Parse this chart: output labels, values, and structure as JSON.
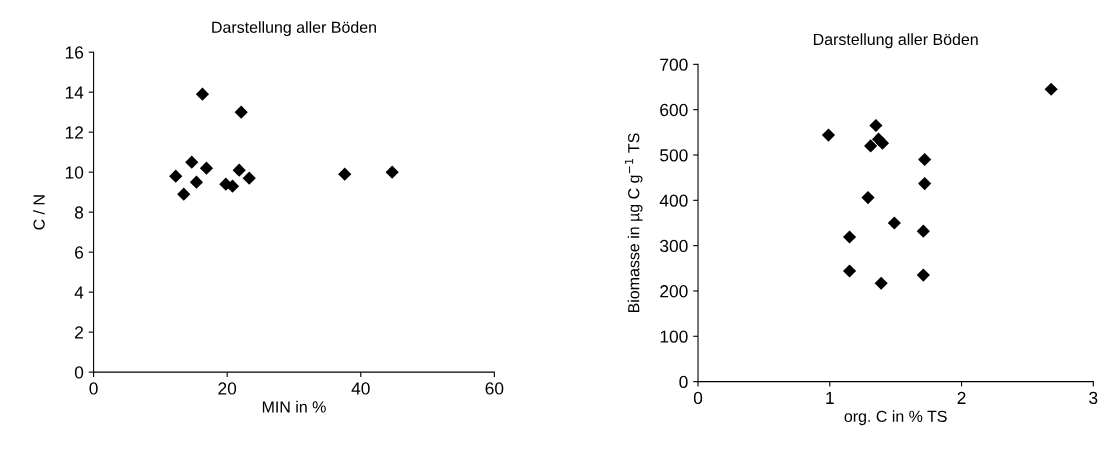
{
  "chart_data": [
    {
      "type": "scatter",
      "title": "Darstellung aller Böden",
      "xlabel": "MIN in %",
      "ylabel": "C / N",
      "xlim": [
        0,
        60
      ],
      "xticks": [
        0,
        20,
        40,
        60
      ],
      "ylim": [
        0,
        16
      ],
      "yticks": [
        0,
        2,
        4,
        6,
        8,
        10,
        12,
        14,
        16
      ],
      "grid": false,
      "legend": false,
      "marker": "diamond",
      "series": [
        {
          "color": "#000000",
          "x": [
            16.3,
            22.1,
            14.7,
            16.9,
            12.3,
            15.4,
            13.5,
            19.8,
            20.8,
            21.8,
            23.3,
            37.6,
            44.7
          ],
          "values": [
            13.9,
            13.0,
            10.5,
            10.2,
            9.8,
            9.5,
            8.9,
            9.4,
            9.3,
            10.1,
            9.7,
            9.9,
            10.0
          ]
        }
      ]
    },
    {
      "type": "scatter",
      "title": "Darstellung aller Böden",
      "xlabel": "org. C in % TS",
      "ylabel": "Biomasse in µg C g$^{−1}$ TS",
      "xlim": [
        0,
        3
      ],
      "xticks": [
        0,
        1,
        2,
        3
      ],
      "ylim": [
        0,
        700
      ],
      "yticks": [
        0,
        100,
        200,
        300,
        400,
        500,
        600,
        700
      ],
      "grid": false,
      "legend": false,
      "marker": "diamond",
      "series": [
        {
          "color": "#000000",
          "x": [
            0.99,
            1.35,
            1.31,
            1.4,
            1.37,
            1.72,
            1.72,
            1.29,
            1.49,
            1.71,
            1.15,
            1.15,
            1.39,
            1.71,
            2.68
          ],
          "values": [
            544,
            565,
            520,
            526,
            535,
            490,
            437,
            406,
            350,
            332,
            319,
            244,
            217,
            235,
            645
          ]
        }
      ]
    }
  ]
}
